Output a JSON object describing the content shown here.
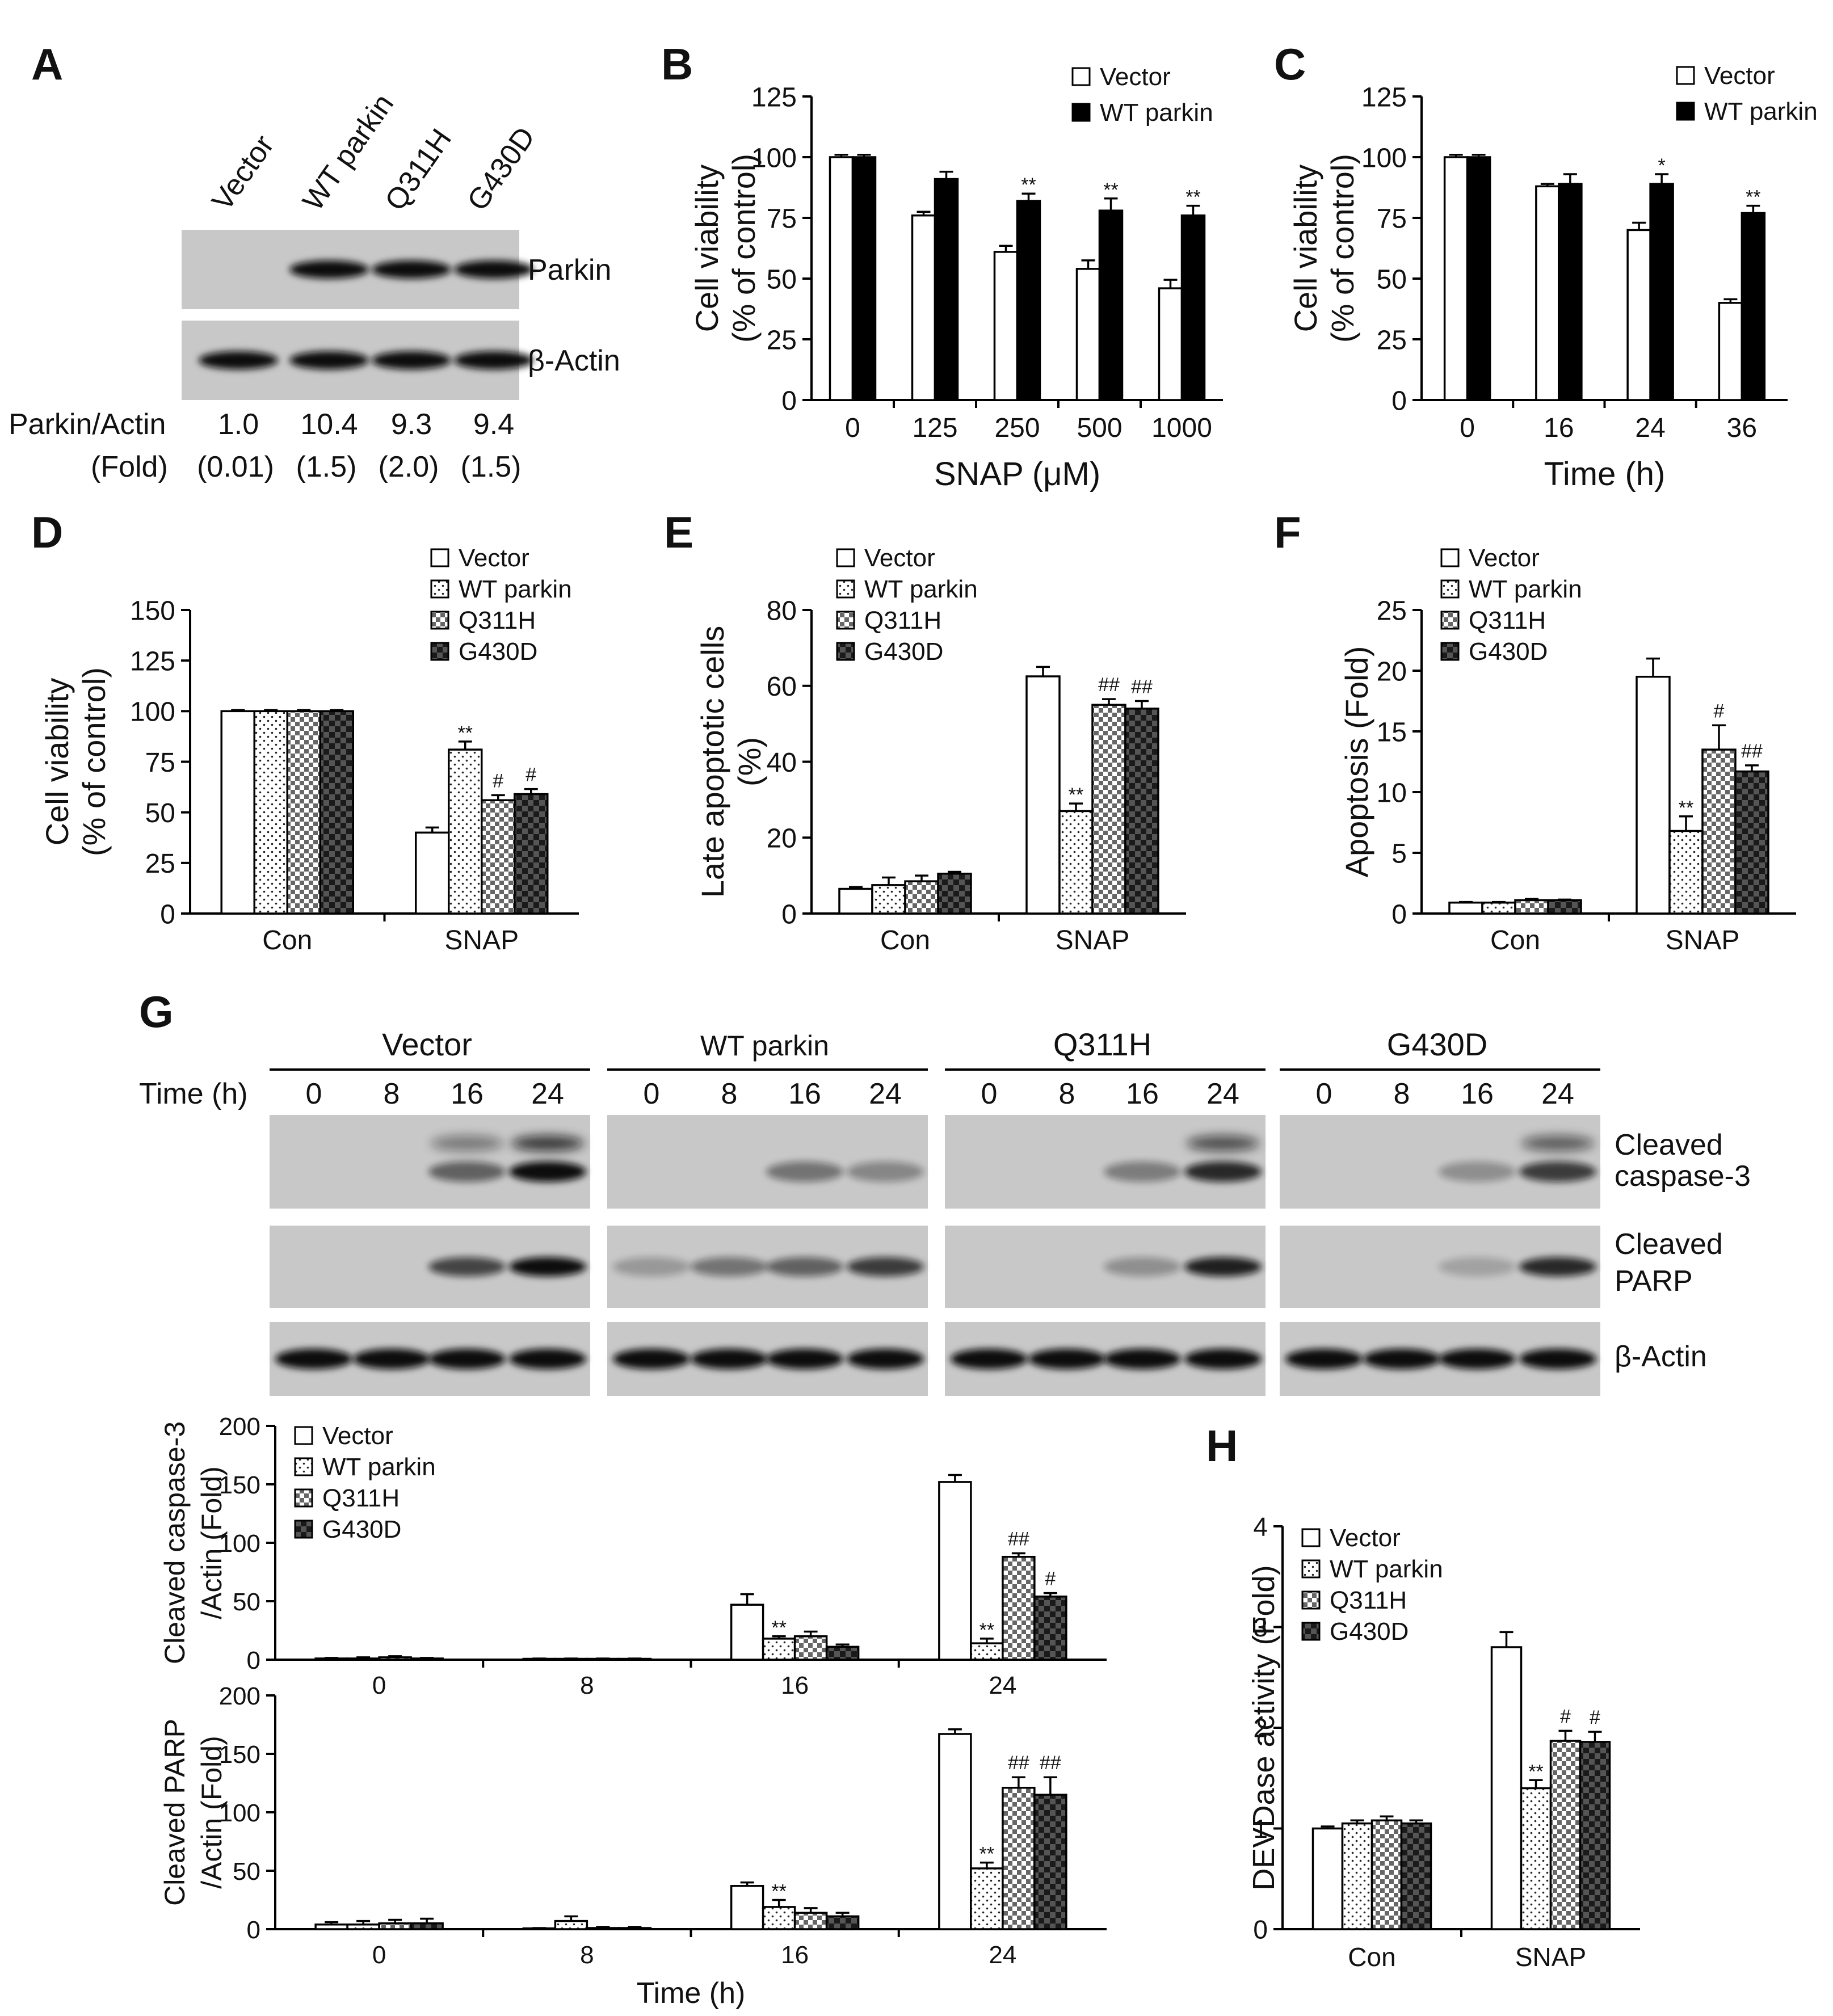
{
  "blot_a": {
    "lanes": [
      "Vector",
      "WT parkin",
      "Q311H",
      "G430D"
    ],
    "row_labels": [
      "Parkin",
      "β-Actin"
    ],
    "ratio_label": "Parkin/Actin",
    "ratios": [
      "1.0",
      "10.4",
      "9.3",
      "9.4"
    ],
    "fold_label": "(Fold)",
    "folds": [
      "(0.01)",
      "(1.5)",
      "(2.0)",
      "(1.5)"
    ],
    "bands": [
      [
        0.0,
        1,
        1,
        1
      ],
      [
        1,
        1,
        1,
        1
      ]
    ]
  },
  "blot_g": {
    "groups": [
      "Vector",
      "WT parkin",
      "Q311H",
      "G430D"
    ],
    "time_label": "Time (h)",
    "times": [
      "0",
      "8",
      "16",
      "24"
    ],
    "row_labels": [
      [
        "Cleaved",
        "caspase-3"
      ],
      [
        "Cleaved",
        "PARP"
      ],
      [
        "β-Actin"
      ]
    ],
    "intensities": [
      [
        [
          0,
          0,
          0.55,
          1.0
        ],
        [
          0,
          0,
          0.45,
          0.35
        ],
        [
          0,
          0,
          0.4,
          0.85
        ],
        [
          0,
          0,
          0.3,
          0.75
        ]
      ],
      [
        [
          0,
          0,
          0.7,
          1.0
        ],
        [
          0.25,
          0.45,
          0.55,
          0.75
        ],
        [
          0,
          0,
          0.3,
          0.9
        ],
        [
          0,
          0,
          0.2,
          0.85
        ]
      ],
      [
        [
          1,
          1,
          1,
          1
        ],
        [
          1,
          1,
          1,
          1
        ],
        [
          1,
          1,
          1,
          1
        ],
        [
          1,
          1,
          1,
          1
        ]
      ]
    ]
  },
  "chart_data": [
    {
      "id": "B",
      "panel_label": "B",
      "type": "bar",
      "categories": [
        "0",
        "125",
        "250",
        "500",
        "1000"
      ],
      "series": [
        {
          "name": "Vector",
          "values": [
            100,
            76,
            61,
            54,
            46
          ],
          "errors": [
            1,
            1.5,
            2.5,
            3.5,
            3.5
          ]
        },
        {
          "name": "WT parkin",
          "values": [
            100,
            91,
            82,
            78,
            76
          ],
          "errors": [
            1,
            3,
            3,
            5,
            4
          ]
        }
      ],
      "annotations": [
        [
          "",
          ""
        ],
        [
          "",
          ""
        ],
        [
          "",
          "**"
        ],
        [
          "",
          "**"
        ],
        [
          "",
          "**"
        ]
      ],
      "ylim": [
        0,
        125
      ],
      "yticks": [
        0,
        25,
        50,
        75,
        100,
        125
      ],
      "ylabel": [
        "Cell viability",
        "(% of control)"
      ],
      "xlabel": "SNAP (μM)"
    },
    {
      "id": "C",
      "panel_label": "C",
      "type": "bar",
      "categories": [
        "0",
        "16",
        "24",
        "36"
      ],
      "series": [
        {
          "name": "Vector",
          "values": [
            100,
            88,
            70,
            40
          ],
          "errors": [
            1,
            1,
            3,
            1.5
          ]
        },
        {
          "name": "WT parkin",
          "values": [
            100,
            89,
            89,
            77
          ],
          "errors": [
            1,
            4,
            4,
            3
          ]
        }
      ],
      "annotations": [
        [
          "",
          ""
        ],
        [
          "",
          ""
        ],
        [
          "",
          "*"
        ],
        [
          "",
          "**"
        ]
      ],
      "ylim": [
        0,
        125
      ],
      "yticks": [
        0,
        25,
        50,
        75,
        100,
        125
      ],
      "ylabel": [
        "Cell viability",
        "(% of control)"
      ],
      "xlabel": "Time (h)"
    },
    {
      "id": "D",
      "panel_label": "D",
      "type": "bar",
      "categories": [
        "Con",
        "SNAP"
      ],
      "series": [
        {
          "name": "Vector",
          "values": [
            100,
            40
          ],
          "errors": [
            0.5,
            2.5
          ]
        },
        {
          "name": "WT parkin",
          "values": [
            100,
            81
          ],
          "errors": [
            0.5,
            4
          ]
        },
        {
          "name": "Q311H",
          "values": [
            100,
            56
          ],
          "errors": [
            0.5,
            2.5
          ]
        },
        {
          "name": "G430D",
          "values": [
            100,
            59
          ],
          "errors": [
            0.5,
            2.5
          ]
        }
      ],
      "annotations": [
        [
          "",
          "",
          "",
          ""
        ],
        [
          "",
          "**",
          "#",
          "#"
        ]
      ],
      "ylim": [
        0,
        150
      ],
      "yticks": [
        0,
        25,
        50,
        75,
        100,
        125,
        150
      ],
      "ylabel": [
        "Cell viability",
        "(% of control)"
      ],
      "xlabel": ""
    },
    {
      "id": "E",
      "panel_label": "E",
      "type": "bar",
      "categories": [
        "Con",
        "SNAP"
      ],
      "series": [
        {
          "name": "Vector",
          "values": [
            6.5,
            62.5
          ],
          "errors": [
            0.5,
            2.5
          ]
        },
        {
          "name": "WT parkin",
          "values": [
            7.5,
            27
          ],
          "errors": [
            2,
            2
          ]
        },
        {
          "name": "Q311H",
          "values": [
            8.5,
            55
          ],
          "errors": [
            1.5,
            1.5
          ]
        },
        {
          "name": "G430D",
          "values": [
            10.5,
            54
          ],
          "errors": [
            0.5,
            2
          ]
        }
      ],
      "annotations": [
        [
          "",
          "",
          "",
          ""
        ],
        [
          "",
          "**",
          "##",
          "##"
        ]
      ],
      "ylim": [
        0,
        80
      ],
      "yticks": [
        0,
        20,
        40,
        60,
        80
      ],
      "ylabel": [
        "Late apoptotic cells",
        "(%)"
      ],
      "xlabel": ""
    },
    {
      "id": "F",
      "panel_label": "F",
      "type": "bar",
      "categories": [
        "Con",
        "SNAP"
      ],
      "series": [
        {
          "name": "Vector",
          "values": [
            0.9,
            19.5
          ],
          "errors": [
            0.05,
            1.5
          ]
        },
        {
          "name": "WT parkin",
          "values": [
            0.9,
            6.8
          ],
          "errors": [
            0.05,
            1.2
          ]
        },
        {
          "name": "Q311H",
          "values": [
            1.1,
            13.5
          ],
          "errors": [
            0.1,
            2
          ]
        },
        {
          "name": "G430D",
          "values": [
            1.1,
            11.7
          ],
          "errors": [
            0.05,
            0.5
          ]
        }
      ],
      "annotations": [
        [
          "",
          "",
          "",
          ""
        ],
        [
          "",
          "**",
          "#",
          "##"
        ]
      ],
      "ylim": [
        0,
        25
      ],
      "yticks": [
        0,
        5,
        10,
        15,
        20,
        25
      ],
      "ylabel": [
        "Apoptosis (Fold)"
      ],
      "xlabel": ""
    },
    {
      "id": "G1",
      "panel_label": "",
      "type": "bar",
      "categories": [
        "0",
        "8",
        "16",
        "24"
      ],
      "series": [
        {
          "name": "Vector",
          "values": [
            1,
            0.5,
            47,
            152
          ],
          "errors": [
            0.5,
            0.5,
            9,
            6
          ]
        },
        {
          "name": "WT parkin",
          "values": [
            1,
            0.5,
            18,
            14
          ],
          "errors": [
            1,
            0.5,
            2,
            4
          ]
        },
        {
          "name": "Q311H",
          "values": [
            2,
            0.5,
            20,
            88
          ],
          "errors": [
            1,
            0.5,
            4,
            3
          ]
        },
        {
          "name": "G430D",
          "values": [
            1,
            0.5,
            11,
            54
          ],
          "errors": [
            0.5,
            0.5,
            2,
            3
          ]
        }
      ],
      "annotations": [
        [
          "",
          "",
          "",
          ""
        ],
        [
          "",
          "",
          "",
          ""
        ],
        [
          "",
          "**",
          "",
          ""
        ],
        [
          "",
          "**",
          "##",
          "#"
        ]
      ],
      "ylim": [
        0,
        200
      ],
      "yticks": [
        0,
        50,
        100,
        150,
        200
      ],
      "ylabel": [
        "Cleaved caspase-3",
        "/Actin (Fold)"
      ],
      "xlabel": ""
    },
    {
      "id": "G2",
      "panel_label": "",
      "type": "bar",
      "categories": [
        "0",
        "8",
        "16",
        "24"
      ],
      "series": [
        {
          "name": "Vector",
          "values": [
            4,
            0.5,
            37,
            167
          ],
          "errors": [
            2,
            0.5,
            3,
            4
          ]
        },
        {
          "name": "WT parkin",
          "values": [
            4,
            7,
            19,
            52
          ],
          "errors": [
            3,
            4,
            6,
            5
          ]
        },
        {
          "name": "Q311H",
          "values": [
            5,
            1,
            14,
            121
          ],
          "errors": [
            3,
            1,
            4,
            9
          ]
        },
        {
          "name": "G430D",
          "values": [
            5,
            1,
            11,
            115
          ],
          "errors": [
            4,
            1,
            3,
            15
          ]
        }
      ],
      "annotations": [
        [
          "",
          "",
          "",
          ""
        ],
        [
          "",
          "",
          "",
          ""
        ],
        [
          "",
          "**",
          "",
          ""
        ],
        [
          "",
          "**",
          "##",
          "##"
        ]
      ],
      "ylim": [
        0,
        200
      ],
      "yticks": [
        0,
        50,
        100,
        150,
        200
      ],
      "ylabel": [
        "Cleaved PARP",
        "/Actin (Fold)"
      ],
      "xlabel": "Time (h)"
    },
    {
      "id": "H",
      "panel_label": "H",
      "type": "bar",
      "categories": [
        "Con",
        "SNAP"
      ],
      "series": [
        {
          "name": "Vector",
          "values": [
            1.0,
            2.8
          ],
          "errors": [
            0.02,
            0.15
          ]
        },
        {
          "name": "WT parkin",
          "values": [
            1.05,
            1.4
          ],
          "errors": [
            0.03,
            0.08
          ]
        },
        {
          "name": "Q311H",
          "values": [
            1.08,
            1.87
          ],
          "errors": [
            0.04,
            0.1
          ]
        },
        {
          "name": "G430D",
          "values": [
            1.05,
            1.86
          ],
          "errors": [
            0.03,
            0.1
          ]
        }
      ],
      "annotations": [
        [
          "",
          "",
          "",
          ""
        ],
        [
          "",
          "**",
          "#",
          "#"
        ]
      ],
      "ylim": [
        0,
        4
      ],
      "yticks": [
        0,
        1,
        2,
        3,
        4
      ],
      "ylabel": [
        "DEVDase activity (Fold)"
      ],
      "xlabel": ""
    }
  ],
  "panel_labels": {
    "A": "A",
    "G": "G"
  }
}
